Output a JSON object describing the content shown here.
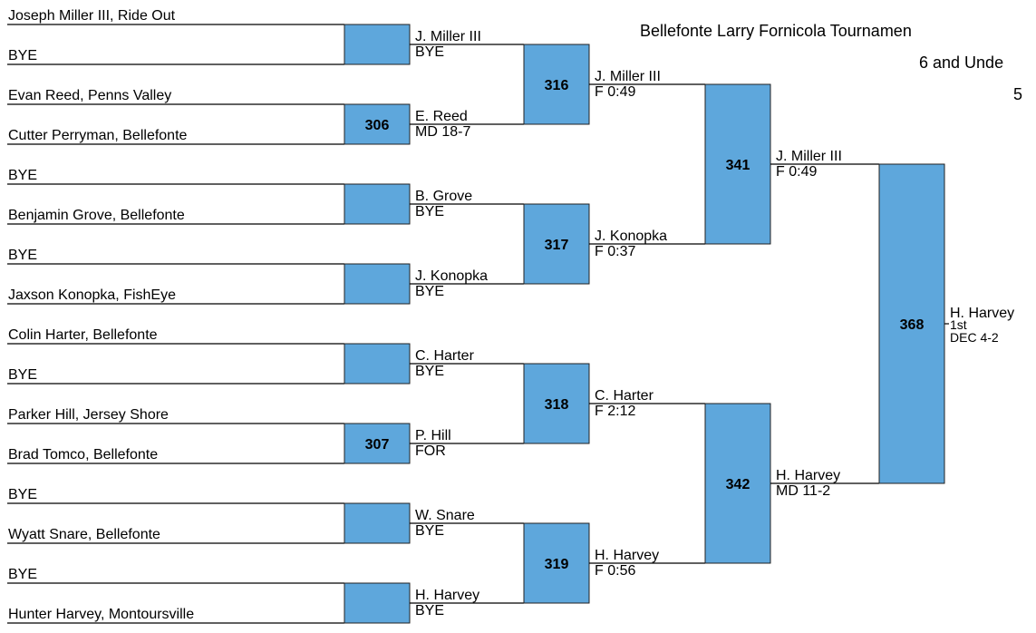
{
  "title": [
    "Bellefonte Larry Fornicola Tournamen",
    "6 and Unde",
    "5"
  ],
  "entrants": [
    "Joseph Miller III, Ride Out",
    "BYE",
    "Evan Reed, Penns Valley",
    "Cutter Perryman, Bellefonte",
    "BYE",
    "Benjamin Grove, Bellefonte",
    "BYE",
    "Jaxson Konopka, FishEye",
    "Colin Harter, Bellefonte",
    "BYE",
    "Parker Hill, Jersey Shore",
    "Brad Tomco, Bellefonte",
    "BYE",
    "Wyatt Snare, Bellefonte",
    "BYE",
    "Hunter Harvey, Montoursville"
  ],
  "rounds": [
    [
      {
        "winner": "J. Miller III",
        "result": "BYE"
      },
      {
        "number": 306,
        "winner": "E. Reed",
        "result": "MD 18-7"
      },
      {
        "winner": "B. Grove",
        "result": "BYE"
      },
      {
        "winner": "J. Konopka",
        "result": "BYE"
      },
      {
        "winner": "C. Harter",
        "result": "BYE"
      },
      {
        "number": 307,
        "winner": "P. Hill",
        "result": "FOR"
      },
      {
        "winner": "W. Snare",
        "result": "BYE"
      },
      {
        "winner": "H. Harvey",
        "result": "BYE"
      }
    ],
    [
      {
        "number": 316,
        "winner": "J. Miller III",
        "result": "F 0:49"
      },
      {
        "number": 317,
        "winner": "J. Konopka",
        "result": "F 0:37"
      },
      {
        "number": 318,
        "winner": "C. Harter",
        "result": "F 2:12"
      },
      {
        "number": 319,
        "winner": "H. Harvey",
        "result": "F 0:56"
      }
    ],
    [
      {
        "number": 341,
        "winner": "J. Miller III",
        "result": "F 0:49"
      },
      {
        "number": 342,
        "winner": "H. Harvey",
        "result": "MD 11-2"
      }
    ],
    [
      {
        "number": 368,
        "winner": "H. Harvey",
        "place": "1st",
        "result": "DEC 4-2"
      }
    ]
  ]
}
